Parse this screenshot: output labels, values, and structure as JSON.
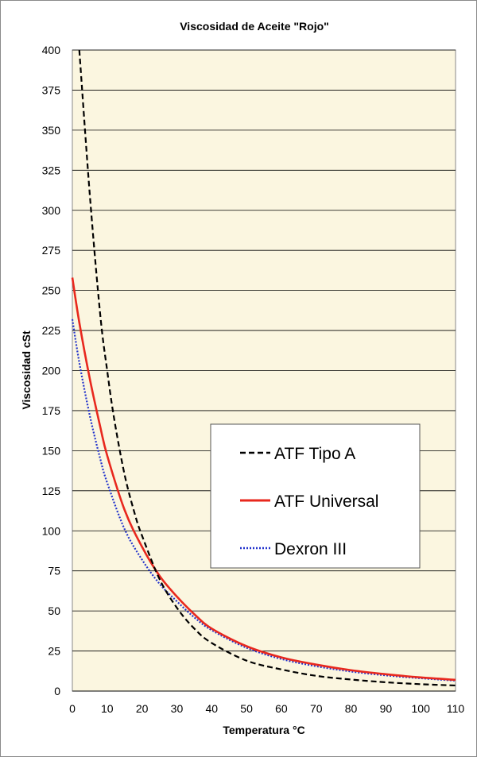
{
  "chart_data": {
    "type": "line",
    "title": "Viscosidad de Aceite \"Rojo\"",
    "xlabel": "Temperatura °C",
    "ylabel": "Viscosidad cSt",
    "xlim": [
      0,
      110
    ],
    "ylim": [
      0,
      400
    ],
    "xticks": [
      0,
      10,
      20,
      30,
      40,
      50,
      60,
      70,
      80,
      90,
      100,
      110
    ],
    "yticks": [
      0,
      25,
      50,
      75,
      100,
      125,
      150,
      175,
      200,
      225,
      250,
      275,
      300,
      325,
      350,
      375,
      400
    ],
    "grid": "horizontal",
    "legend_position": "center-right",
    "background_color": "#fbf6e0",
    "series": [
      {
        "name": "ATF Tipo A",
        "color": "#000000",
        "style": "dashed",
        "x": [
          2,
          5,
          8,
          10,
          12,
          15,
          18,
          20,
          25,
          30,
          35,
          40,
          50,
          60,
          70,
          80,
          90,
          100,
          110
        ],
        "y": [
          400,
          310,
          235,
          200,
          170,
          135,
          110,
          97,
          70,
          52,
          39,
          30,
          19,
          13.5,
          9.5,
          7.2,
          5.5,
          4.3,
          3.5
        ]
      },
      {
        "name": "ATF Universal",
        "color": "#e8281e",
        "style": "solid",
        "x": [
          0,
          2,
          5,
          8,
          10,
          15,
          20,
          25,
          30,
          35,
          40,
          50,
          60,
          70,
          80,
          90,
          100,
          110
        ],
        "y": [
          258,
          230,
          195,
          165,
          147,
          113,
          90,
          72,
          59,
          48,
          39,
          28,
          21,
          16.5,
          13,
          10.5,
          8.5,
          7
        ]
      },
      {
        "name": "Dexron III",
        "color": "#2233cc",
        "style": "dotted",
        "x": [
          0,
          2,
          5,
          8,
          10,
          15,
          20,
          25,
          30,
          35,
          40,
          50,
          60,
          70,
          80,
          90,
          100,
          110
        ],
        "y": [
          232,
          205,
          172,
          145,
          130,
          101,
          82,
          67,
          56,
          46,
          38,
          27,
          20,
          15.5,
          12.2,
          9.8,
          8,
          6.5
        ]
      }
    ]
  }
}
